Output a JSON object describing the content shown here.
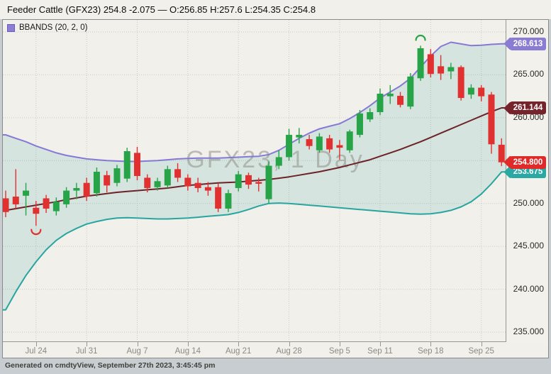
{
  "title_bar": {
    "text": "Feeder Cattle (GFX23) 254.8 -2.075 — O:256.85 H:257.6 L:254.35 C:254.8"
  },
  "legend": {
    "label": "BBANDS (20, 2, 0)",
    "swatch_color": "#8b7fd4"
  },
  "watermark": "GFX23, 1 Day",
  "footer": {
    "text": "Generated on cmdtyView, September 27th 2023, 3:45:45 pm"
  },
  "colors": {
    "up": "#27a348",
    "down": "#e13030",
    "upper_band": "#8579d6",
    "middle_band": "#6d2228",
    "lower_band": "#29a5a0",
    "band_fill": "rgba(45,155,148,0.14)",
    "grid": "#ccc9c1",
    "axis_line": "#98978f"
  },
  "y_axis": {
    "ticks": [
      {
        "price": 270,
        "label": "270.000"
      },
      {
        "price": 265,
        "label": "265.000"
      },
      {
        "price": 260,
        "label": "260.000"
      },
      {
        "price": 255,
        "label": ""
      },
      {
        "price": 250,
        "label": "250.000"
      },
      {
        "price": 245,
        "label": "245.000"
      },
      {
        "price": 240,
        "label": "240.000"
      },
      {
        "price": 235,
        "label": "235.000"
      }
    ]
  },
  "x_axis": {
    "labels": [
      {
        "index": 3,
        "text": "Jul 24"
      },
      {
        "index": 8,
        "text": "Jul 31"
      },
      {
        "index": 13,
        "text": "Aug 7"
      },
      {
        "index": 18,
        "text": "Aug 14"
      },
      {
        "index": 23,
        "text": "Aug 21"
      },
      {
        "index": 28,
        "text": "Aug 28"
      },
      {
        "index": 33,
        "text": "Sep 5"
      },
      {
        "index": 37,
        "text": "Sep 11"
      },
      {
        "index": 42,
        "text": "Sep 18"
      },
      {
        "index": 47,
        "text": "Sep 25"
      }
    ]
  },
  "price_labels": [
    {
      "text": "268.613",
      "price": 268.613,
      "color": "#8a7bd3",
      "name": "upper-band-price-badge",
      "z": 4
    },
    {
      "text": "261.144",
      "price": 261.144,
      "color": "#77232c",
      "name": "middle-band-price-badge",
      "z": 4
    },
    {
      "text": "254.800",
      "price": 254.8,
      "color": "#e02a2a",
      "name": "last-price-badge",
      "z": 5
    },
    {
      "text": "253.675",
      "price": 253.675,
      "color": "#2aa8a4",
      "name": "lower-band-price-badge",
      "z": 3
    }
  ],
  "chart_data": {
    "type": "candlestick",
    "symbol": "GFX23",
    "interval": "1 Day",
    "overlay": {
      "name": "BBANDS",
      "period": 20,
      "stdev": 2,
      "shift": 0
    },
    "ylim": [
      235,
      270
    ],
    "last_quote": {
      "last": 254.8,
      "change": -2.075,
      "o": 256.85,
      "h": 257.6,
      "l": 254.35,
      "c": 254.8
    },
    "candles": [
      {
        "d": "Jul 19",
        "o": 250.6,
        "h": 251.5,
        "l": 248.4,
        "c": 249.0
      },
      {
        "d": "Jul 20",
        "o": 250.8,
        "h": 254.0,
        "l": 249.4,
        "c": 249.9
      },
      {
        "d": "Jul 21",
        "o": 250.9,
        "h": 252.4,
        "l": 248.6,
        "c": 251.5
      },
      {
        "d": "Jul 24",
        "o": 249.5,
        "h": 250.3,
        "l": 247.4,
        "c": 248.8
      },
      {
        "d": "Jul 25",
        "o": 250.6,
        "h": 251.0,
        "l": 248.9,
        "c": 249.4
      },
      {
        "d": "Jul 26",
        "o": 249.1,
        "h": 250.7,
        "l": 248.6,
        "c": 250.2
      },
      {
        "d": "Jul 27",
        "o": 249.9,
        "h": 251.9,
        "l": 249.5,
        "c": 251.5
      },
      {
        "d": "Jul 28",
        "o": 251.5,
        "h": 252.4,
        "l": 250.5,
        "c": 251.8
      },
      {
        "d": "Jul 31",
        "o": 252.4,
        "h": 253.0,
        "l": 250.3,
        "c": 250.8
      },
      {
        "d": "Aug 1",
        "o": 251.2,
        "h": 254.2,
        "l": 250.8,
        "c": 253.7
      },
      {
        "d": "Aug 2",
        "o": 253.3,
        "h": 253.8,
        "l": 251.3,
        "c": 252.1
      },
      {
        "d": "Aug 3",
        "o": 252.4,
        "h": 254.5,
        "l": 252.0,
        "c": 254.1
      },
      {
        "d": "Aug 4",
        "o": 252.9,
        "h": 256.5,
        "l": 252.5,
        "c": 256.1
      },
      {
        "d": "Aug 7",
        "o": 255.9,
        "h": 256.6,
        "l": 252.7,
        "c": 253.2
      },
      {
        "d": "Aug 8",
        "o": 253.0,
        "h": 253.4,
        "l": 251.3,
        "c": 251.8
      },
      {
        "d": "Aug 9",
        "o": 251.9,
        "h": 253.0,
        "l": 251.5,
        "c": 252.6
      },
      {
        "d": "Aug 10",
        "o": 252.1,
        "h": 254.4,
        "l": 251.8,
        "c": 254.0
      },
      {
        "d": "Aug 11",
        "o": 254.0,
        "h": 254.7,
        "l": 252.5,
        "c": 253.0
      },
      {
        "d": "Aug 14",
        "o": 253.0,
        "h": 253.4,
        "l": 251.5,
        "c": 252.0
      },
      {
        "d": "Aug 15",
        "o": 252.4,
        "h": 253.0,
        "l": 251.3,
        "c": 251.8
      },
      {
        "d": "Aug 16",
        "o": 251.9,
        "h": 252.5,
        "l": 250.9,
        "c": 251.5
      },
      {
        "d": "Aug 17",
        "o": 251.9,
        "h": 252.3,
        "l": 249.0,
        "c": 249.4
      },
      {
        "d": "Aug 18",
        "o": 249.4,
        "h": 251.6,
        "l": 249.0,
        "c": 251.2
      },
      {
        "d": "Aug 21",
        "o": 251.8,
        "h": 253.8,
        "l": 251.4,
        "c": 253.4
      },
      {
        "d": "Aug 22",
        "o": 253.3,
        "h": 253.6,
        "l": 251.7,
        "c": 252.2
      },
      {
        "d": "Aug 23",
        "o": 252.5,
        "h": 253.0,
        "l": 251.4,
        "c": 252.3
      },
      {
        "d": "Aug 24",
        "o": 250.5,
        "h": 254.9,
        "l": 250.0,
        "c": 254.4
      },
      {
        "d": "Aug 25",
        "o": 254.4,
        "h": 256.2,
        "l": 254.0,
        "c": 255.4
      },
      {
        "d": "Aug 28",
        "o": 255.4,
        "h": 258.7,
        "l": 255.0,
        "c": 258.0
      },
      {
        "d": "Aug 29",
        "o": 257.7,
        "h": 258.8,
        "l": 257.0,
        "c": 258.0
      },
      {
        "d": "Aug 30",
        "o": 257.5,
        "h": 258.0,
        "l": 256.3,
        "c": 256.7
      },
      {
        "d": "Aug 31",
        "o": 256.2,
        "h": 258.2,
        "l": 255.9,
        "c": 257.8
      },
      {
        "d": "Sep 1",
        "o": 257.6,
        "h": 258.0,
        "l": 255.9,
        "c": 256.3
      },
      {
        "d": "Sep 5",
        "o": 256.8,
        "h": 257.4,
        "l": 255.1,
        "c": 256.5
      },
      {
        "d": "Sep 6",
        "o": 256.2,
        "h": 258.6,
        "l": 255.9,
        "c": 258.4
      },
      {
        "d": "Sep 7",
        "o": 258.0,
        "h": 260.9,
        "l": 257.7,
        "c": 260.5
      },
      {
        "d": "Sep 8",
        "o": 259.8,
        "h": 261.1,
        "l": 259.5,
        "c": 260.65
      },
      {
        "d": "Sep 11",
        "o": 260.65,
        "h": 263.4,
        "l": 260.3,
        "c": 262.8
      },
      {
        "d": "Sep 12",
        "o": 262.5,
        "h": 263.8,
        "l": 261.6,
        "c": 262.8
      },
      {
        "d": "Sep 13",
        "o": 262.55,
        "h": 263.0,
        "l": 261.2,
        "c": 261.5
      },
      {
        "d": "Sep 14",
        "o": 261.3,
        "h": 265.2,
        "l": 261.0,
        "c": 264.8
      },
      {
        "d": "Sep 15",
        "o": 264.6,
        "h": 268.4,
        "l": 264.3,
        "c": 268.1
      },
      {
        "d": "Sep 18",
        "o": 267.4,
        "h": 268.0,
        "l": 264.7,
        "c": 265.1
      },
      {
        "d": "Sep 19",
        "o": 266.0,
        "h": 267.3,
        "l": 264.4,
        "c": 265.15
      },
      {
        "d": "Sep 20",
        "o": 265.4,
        "h": 266.4,
        "l": 264.5,
        "c": 265.9
      },
      {
        "d": "Sep 21",
        "o": 265.9,
        "h": 266.1,
        "l": 262.0,
        "c": 262.3
      },
      {
        "d": "Sep 22",
        "o": 262.7,
        "h": 263.9,
        "l": 262.2,
        "c": 263.5
      },
      {
        "d": "Sep 25",
        "o": 263.5,
        "h": 263.8,
        "l": 261.9,
        "c": 262.5
      },
      {
        "d": "Sep 26",
        "o": 262.7,
        "h": 263.0,
        "l": 255.8,
        "c": 256.9
      },
      {
        "d": "Sep 27",
        "o": 256.85,
        "h": 257.6,
        "l": 254.35,
        "c": 254.8
      }
    ],
    "bbands": {
      "upper": [
        258.0,
        257.6,
        257.2,
        256.7,
        256.3,
        255.9,
        255.6,
        255.4,
        255.2,
        255.1,
        255.0,
        254.95,
        254.9,
        254.9,
        254.95,
        255.0,
        255.1,
        255.2,
        255.25,
        255.3,
        255.3,
        255.3,
        255.35,
        255.4,
        255.45,
        255.5,
        255.7,
        256.2,
        256.9,
        257.6,
        258.2,
        258.7,
        259.0,
        259.3,
        259.9,
        260.6,
        261.4,
        262.3,
        263.0,
        263.7,
        264.6,
        265.9,
        267.2,
        268.3,
        268.8,
        268.6,
        268.4,
        268.45,
        268.55,
        268.613
      ],
      "middle": [
        249.2,
        249.4,
        249.6,
        249.8,
        250.0,
        250.2,
        250.45,
        250.65,
        250.85,
        251.0,
        251.15,
        251.3,
        251.4,
        251.5,
        251.6,
        251.7,
        251.8,
        251.95,
        252.1,
        252.2,
        252.3,
        252.4,
        252.45,
        252.5,
        252.6,
        252.7,
        252.8,
        252.95,
        253.1,
        253.3,
        253.5,
        253.7,
        253.95,
        254.2,
        254.5,
        254.8,
        255.1,
        255.5,
        255.9,
        256.3,
        256.75,
        257.2,
        257.7,
        258.2,
        258.7,
        259.2,
        259.7,
        260.2,
        260.7,
        261.144
      ],
      "lower": [
        237.6,
        239.7,
        241.6,
        243.2,
        244.6,
        245.7,
        246.5,
        247.1,
        247.6,
        247.9,
        248.15,
        248.3,
        248.35,
        248.3,
        248.25,
        248.2,
        248.2,
        248.25,
        248.3,
        248.4,
        248.5,
        248.6,
        248.7,
        248.95,
        249.3,
        249.7,
        250.0,
        250.05,
        250.0,
        249.9,
        249.8,
        249.7,
        249.6,
        249.5,
        249.4,
        249.3,
        249.2,
        249.1,
        249.0,
        248.9,
        248.8,
        248.75,
        248.8,
        248.95,
        249.2,
        249.6,
        250.2,
        251.1,
        252.3,
        253.675
      ]
    },
    "markers": [
      {
        "kind": "trough",
        "index": 3,
        "price": 246.95
      },
      {
        "kind": "peak",
        "index": 41,
        "price": 269.05
      }
    ]
  }
}
